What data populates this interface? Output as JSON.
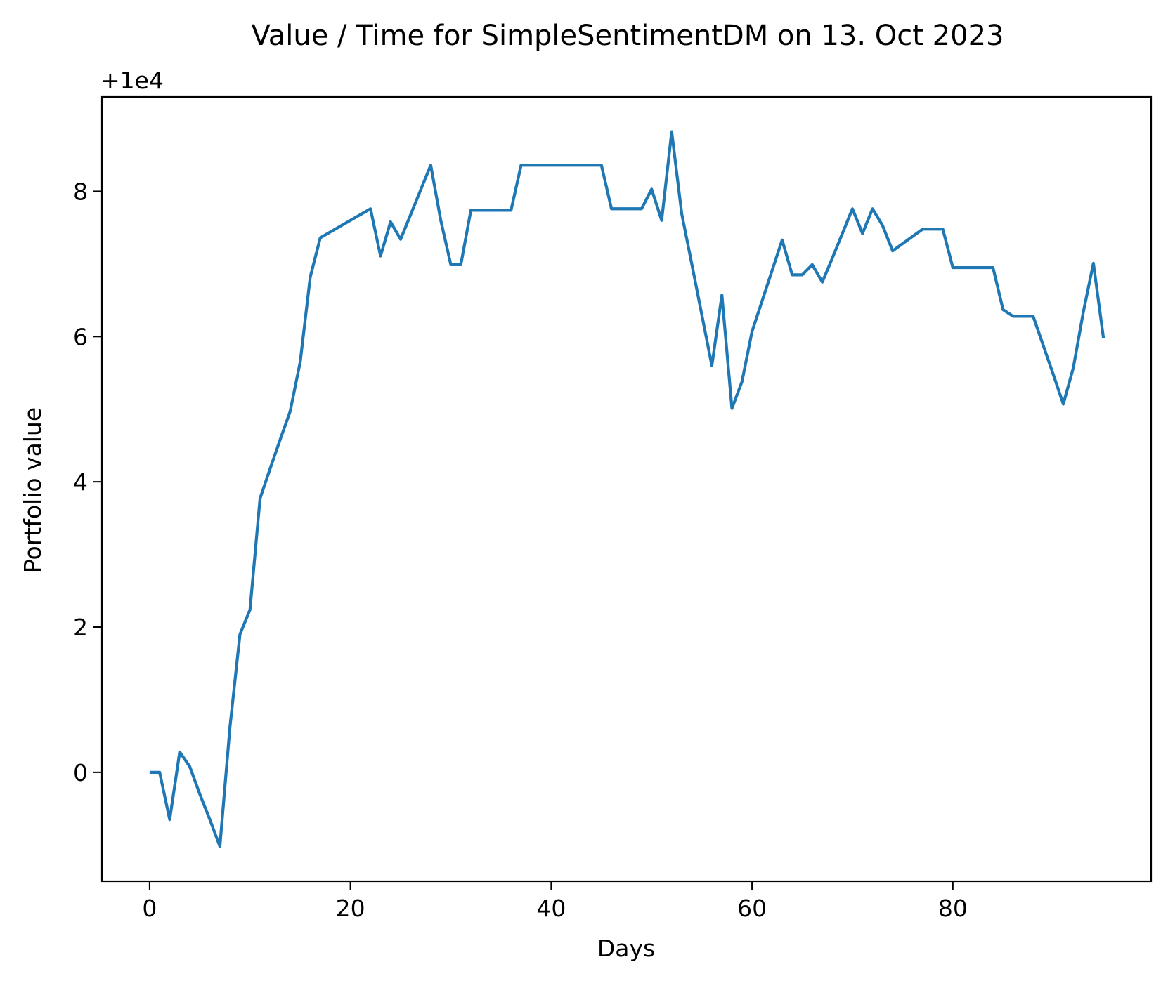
{
  "chart_data": {
    "type": "line",
    "title": "Value / Time for SimpleSentimentDM on 13. Oct 2023",
    "xlabel": "Days",
    "ylabel": "Portfolio value",
    "y_offset_label": "+1e4",
    "xlim": [
      -4.75,
      99.75
    ],
    "ylim": [
      -1.5,
      9.3
    ],
    "xticks": [
      0,
      20,
      40,
      60,
      80
    ],
    "yticks": [
      0,
      2,
      4,
      6,
      8
    ],
    "grid": false,
    "legend": "none",
    "series": [
      {
        "color": "#1f77b4",
        "x": [
          0,
          1,
          2,
          3,
          4,
          5,
          6,
          7,
          8,
          9,
          10,
          11,
          12,
          13,
          14,
          15,
          16,
          17,
          18,
          19,
          20,
          21,
          22,
          23,
          24,
          25,
          26,
          27,
          28,
          29,
          30,
          31,
          32,
          33,
          34,
          35,
          36,
          37,
          38,
          39,
          40,
          41,
          42,
          43,
          44,
          45,
          46,
          47,
          48,
          49,
          50,
          51,
          52,
          53,
          54,
          55,
          56,
          57,
          58,
          59,
          60,
          61,
          62,
          63,
          64,
          65,
          66,
          67,
          68,
          69,
          70,
          71,
          72,
          73,
          74,
          75,
          76,
          77,
          78,
          79,
          80,
          81,
          82,
          83,
          84,
          85,
          86,
          87,
          88,
          89,
          90,
          91,
          92,
          93,
          94,
          95
        ],
        "y": [
          0.0,
          0.0,
          -0.65,
          0.28,
          0.08,
          -0.3,
          -0.65,
          -1.02,
          0.62,
          1.9,
          2.24,
          3.77,
          4.18,
          4.58,
          4.97,
          5.65,
          6.82,
          7.36,
          7.44,
          7.52,
          7.6,
          7.68,
          7.76,
          7.11,
          7.58,
          7.34,
          7.68,
          8.02,
          8.36,
          7.6,
          6.99,
          6.99,
          7.74,
          7.74,
          7.74,
          7.74,
          7.74,
          8.36,
          8.36,
          8.36,
          8.36,
          8.36,
          8.36,
          8.36,
          8.36,
          8.36,
          7.76,
          7.76,
          7.76,
          7.76,
          8.03,
          7.6,
          8.82,
          7.69,
          7.0,
          6.3,
          5.6,
          6.57,
          5.01,
          5.38,
          6.07,
          6.49,
          6.91,
          7.33,
          6.85,
          6.85,
          6.99,
          6.75,
          7.08,
          7.42,
          7.76,
          7.42,
          7.76,
          7.53,
          7.18,
          7.28,
          7.38,
          7.48,
          7.48,
          7.48,
          6.95,
          6.95,
          6.95,
          6.95,
          6.95,
          6.37,
          6.28,
          6.28,
          6.28,
          5.88,
          5.48,
          5.07,
          5.57,
          6.34,
          7.01,
          5.98
        ]
      }
    ]
  }
}
